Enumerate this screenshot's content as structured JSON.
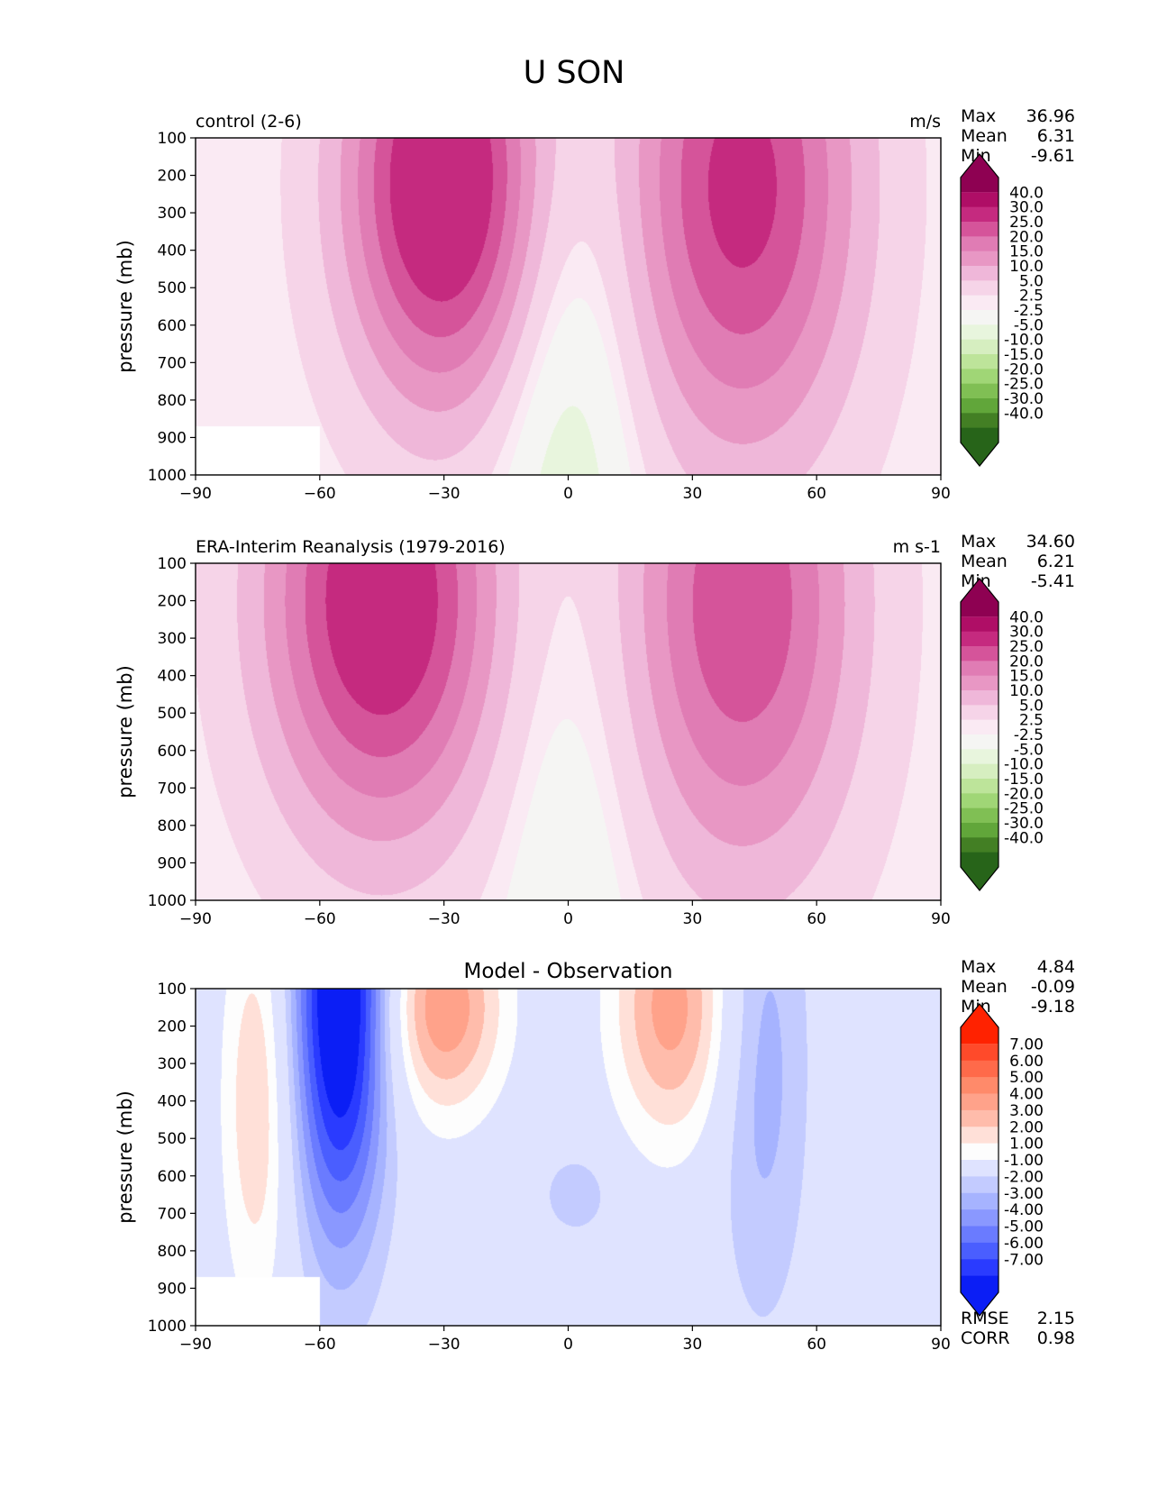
{
  "title": "U SON",
  "chart_data": [
    {
      "type": "contour",
      "title": "control (2-6)",
      "units": "m/s",
      "xlabel": "",
      "ylabel": "pressure (mb)",
      "x_ticks": [
        -90,
        -60,
        -30,
        0,
        30,
        60,
        90
      ],
      "y_ticks": [
        100,
        200,
        300,
        400,
        500,
        600,
        700,
        800,
        900,
        1000
      ],
      "xlim": [
        -90,
        90
      ],
      "ylim": [
        1000,
        100
      ],
      "stats": [
        {
          "label": "Max",
          "value": "36.96"
        },
        {
          "label": "Mean",
          "value": "6.31"
        },
        {
          "label": "Min",
          "value": "-9.61"
        }
      ],
      "colorbar": {
        "labels": [
          "40.0",
          "30.0",
          "25.0",
          "20.0",
          "15.0",
          "10.0",
          "5.0",
          "2.5",
          "-2.5",
          "-5.0",
          "-10.0",
          "-15.0",
          "-20.0",
          "-25.0",
          "-30.0",
          "-40.0"
        ],
        "colors": [
          "#8e0152",
          "#af0e66",
          "#c52a7f",
          "#d5549a",
          "#e07cb4",
          "#e897c4",
          "#efb7d9",
          "#f6d4e8",
          "#faeaf3",
          "#f5f5f3",
          "#e8f5dd",
          "#d6eec0",
          "#bde49a",
          "#a0d676",
          "#80bf54",
          "#61a63a",
          "#437f24",
          "#276419"
        ],
        "extend": "both"
      },
      "features": [
        {
          "kind": "jet",
          "lat": -30,
          "lev": 220,
          "peak": 36.96,
          "slat": 17,
          "slev": 420
        },
        {
          "kind": "jet",
          "lat": 42,
          "lev": 230,
          "peak": 30,
          "slat": 20,
          "slev": 520
        },
        {
          "kind": "easterly",
          "lat": 0,
          "lev": 900,
          "peak": -9.61,
          "slat": 12,
          "slev": 700
        }
      ],
      "missing_region": {
        "lat_min": -90,
        "lat_max": -60,
        "lev_min": 870,
        "lev_max": 1000
      }
    },
    {
      "type": "contour",
      "title": "ERA-Interim Reanalysis (1979-2016)",
      "units": "m s-1",
      "xlabel": "",
      "ylabel": "pressure (mb)",
      "x_ticks": [
        -90,
        -60,
        -30,
        0,
        30,
        60,
        90
      ],
      "y_ticks": [
        100,
        200,
        300,
        400,
        500,
        600,
        700,
        800,
        900,
        1000
      ],
      "xlim": [
        -90,
        90
      ],
      "ylim": [
        1000,
        100
      ],
      "stats": [
        {
          "label": "Max",
          "value": "34.60"
        },
        {
          "label": "Mean",
          "value": "6.21"
        },
        {
          "label": "Min",
          "value": "-5.41"
        }
      ],
      "colorbar": {
        "labels": [
          "40.0",
          "30.0",
          "25.0",
          "20.0",
          "15.0",
          "10.0",
          "5.0",
          "2.5",
          "-2.5",
          "-5.0",
          "-10.0",
          "-15.0",
          "-20.0",
          "-25.0",
          "-30.0",
          "-40.0"
        ],
        "colors": [
          "#8e0152",
          "#af0e66",
          "#c52a7f",
          "#d5549a",
          "#e07cb4",
          "#e897c4",
          "#efb7d9",
          "#f6d4e8",
          "#faeaf3",
          "#f5f5f3",
          "#e8f5dd",
          "#d6eec0",
          "#bde49a",
          "#a0d676",
          "#80bf54",
          "#61a63a",
          "#437f24",
          "#276419"
        ],
        "extend": "both"
      },
      "features": [
        {
          "kind": "jet",
          "lat": -45,
          "lev": 200,
          "peak": 34.6,
          "slat": 20,
          "slev": 450
        },
        {
          "kind": "jet",
          "lat": 42,
          "lev": 210,
          "peak": 27,
          "slat": 20,
          "slev": 520
        },
        {
          "kind": "easterly",
          "lat": 0,
          "lev": 900,
          "peak": -5.41,
          "slat": 12,
          "slev": 700
        }
      ],
      "missing_region": null
    },
    {
      "type": "contour",
      "title": "Model - Observation",
      "units": "",
      "xlabel": "",
      "ylabel": "pressure (mb)",
      "x_ticks": [
        -90,
        -60,
        -30,
        0,
        30,
        60,
        90
      ],
      "y_ticks": [
        100,
        200,
        300,
        400,
        500,
        600,
        700,
        800,
        900,
        1000
      ],
      "xlim": [
        -90,
        90
      ],
      "ylim": [
        1000,
        100
      ],
      "stats": [
        {
          "label": "Max",
          "value": "4.84"
        },
        {
          "label": "Mean",
          "value": "-0.09"
        },
        {
          "label": "Min",
          "value": "-9.18"
        }
      ],
      "colorbar": {
        "labels": [
          "7.00",
          "6.00",
          "5.00",
          "4.00",
          "3.00",
          "2.00",
          "1.00",
          "-1.00",
          "-2.00",
          "-3.00",
          "-4.00",
          "-5.00",
          "-6.00",
          "-7.00"
        ],
        "colors": [
          "#ff2200",
          "#ff4a2a",
          "#ff6a4a",
          "#ff8a6a",
          "#ffa28a",
          "#ffbcab",
          "#ffe0d8",
          "#fdfdfd",
          "#dfe3ff",
          "#c3cbff",
          "#a6b3ff",
          "#8a98ff",
          "#6a7bff",
          "#4a5eff",
          "#2a3bff",
          "#0b1ef5"
        ],
        "extend": "both"
      },
      "features": [
        {
          "kind": "neg",
          "lat": -55,
          "lev": 120,
          "peak": -9.18,
          "slat": 8,
          "slev": 450
        },
        {
          "kind": "pos",
          "lat": -30,
          "lev": 150,
          "peak": 4.84,
          "slat": 10,
          "slev": 200
        },
        {
          "kind": "pos",
          "lat": 25,
          "lev": 150,
          "peak": 4.5,
          "slat": 10,
          "slev": 250
        },
        {
          "kind": "neg",
          "lat": 47,
          "lev": 300,
          "peak": -2.5,
          "slat": 8,
          "slev": 500
        },
        {
          "kind": "pos",
          "lat": -75,
          "lev": 400,
          "peak": 3,
          "slat": 6,
          "slev": 400
        },
        {
          "kind": "neg",
          "lat": 2,
          "lev": 650,
          "peak": -1.8,
          "slat": 6,
          "slev": 80
        }
      ],
      "missing_region": {
        "lat_min": -90,
        "lat_max": -60,
        "lev_min": 870,
        "lev_max": 1000
      },
      "metrics": [
        {
          "label": "RMSE",
          "value": "2.15"
        },
        {
          "label": "CORR",
          "value": "0.98"
        }
      ]
    }
  ]
}
